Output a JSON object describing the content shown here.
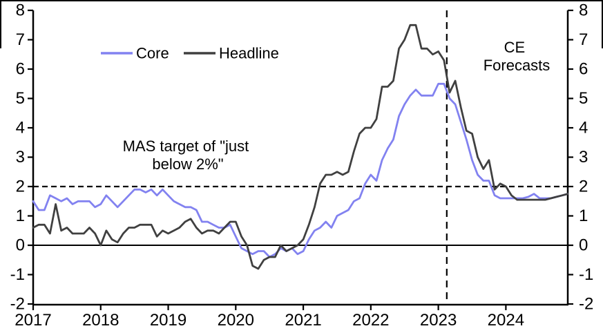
{
  "chart_data": {
    "type": "line",
    "title": "",
    "x_start": "2017-01",
    "x_frequency": "monthly",
    "x_tick_labels": [
      "2017",
      "2018",
      "2019",
      "2020",
      "2021",
      "2022",
      "2023",
      "2024"
    ],
    "y_ticks": [
      8,
      7,
      6,
      5,
      4,
      3,
      2,
      1,
      0,
      -1,
      -2
    ],
    "ylim": [
      -2,
      8
    ],
    "grid": "off",
    "legend_position": "top-left-inside",
    "series": [
      {
        "name": "Core",
        "color": "#8282F0",
        "values": [
          1.5,
          1.2,
          1.2,
          1.7,
          1.6,
          1.5,
          1.6,
          1.4,
          1.5,
          1.5,
          1.5,
          1.3,
          1.4,
          1.7,
          1.5,
          1.3,
          1.5,
          1.7,
          1.9,
          1.9,
          1.8,
          1.9,
          1.7,
          1.9,
          1.7,
          1.5,
          1.4,
          1.3,
          1.3,
          1.2,
          0.8,
          0.8,
          0.7,
          0.6,
          0.6,
          0.7,
          0.3,
          -0.1,
          -0.2,
          -0.3,
          -0.2,
          -0.2,
          -0.4,
          -0.3,
          -0.1,
          -0.2,
          -0.1,
          -0.3,
          -0.2,
          0.2,
          0.5,
          0.6,
          0.8,
          0.6,
          1.0,
          1.1,
          1.2,
          1.5,
          1.6,
          2.1,
          2.4,
          2.2,
          2.9,
          3.3,
          3.6,
          4.4,
          4.8,
          5.1,
          5.3,
          5.1,
          5.1,
          5.1,
          5.5,
          5.5,
          5.0,
          4.8,
          4.2,
          3.6,
          2.9,
          2.4,
          2.2,
          2.2,
          1.7,
          1.6,
          1.6,
          1.6,
          1.6,
          1.6,
          1.65,
          1.75,
          1.6,
          1.6,
          1.6,
          1.65,
          1.7,
          1.75
        ]
      },
      {
        "name": "Headline",
        "color": "#404040",
        "values": [
          0.6,
          0.7,
          0.7,
          0.4,
          1.4,
          0.5,
          0.6,
          0.4,
          0.4,
          0.4,
          0.6,
          0.4,
          0.0,
          0.5,
          0.2,
          0.1,
          0.4,
          0.6,
          0.6,
          0.7,
          0.7,
          0.7,
          0.3,
          0.5,
          0.4,
          0.5,
          0.6,
          0.8,
          0.9,
          0.6,
          0.4,
          0.5,
          0.5,
          0.4,
          0.6,
          0.8,
          0.8,
          0.3,
          0.0,
          -0.7,
          -0.8,
          -0.5,
          -0.4,
          -0.4,
          0.0,
          -0.2,
          -0.1,
          0.0,
          0.2,
          0.7,
          1.3,
          2.1,
          2.4,
          2.4,
          2.5,
          2.4,
          2.5,
          3.2,
          3.8,
          4.0,
          4.0,
          4.3,
          5.4,
          5.4,
          5.6,
          6.7,
          7.0,
          7.5,
          7.5,
          6.7,
          6.7,
          6.5,
          6.6,
          6.3,
          5.2,
          5.6,
          4.7,
          3.9,
          3.8,
          3.0,
          2.6,
          2.9,
          1.9,
          2.1,
          2.0,
          1.7,
          1.55,
          1.55,
          1.55,
          1.55,
          1.55,
          1.55,
          1.6,
          1.65,
          1.7,
          1.75
        ]
      }
    ],
    "reference_lines": {
      "mas_target_value": 2,
      "forecast_boundary_month_index": 73.5
    },
    "annotations": {
      "mas_target": {
        "line1": "MAS target of \"just",
        "line2": "below 2%\""
      },
      "ce_forecasts": {
        "line1": "CE",
        "line2": "Forecasts"
      }
    }
  },
  "legend": {
    "core_label": "Core",
    "headline_label": "Headline"
  },
  "frame": {
    "border_color": "#000000"
  }
}
